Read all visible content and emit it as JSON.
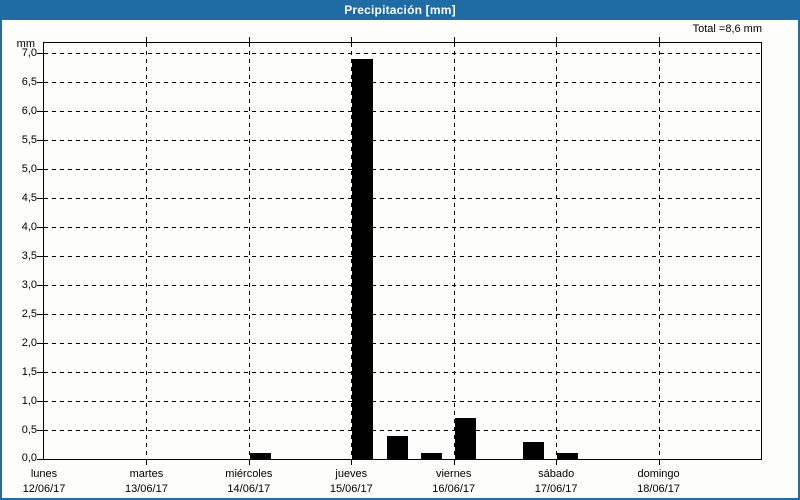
{
  "header": {
    "title": "Precipitación [mm]",
    "total": "Total =8,6 mm"
  },
  "colors": {
    "titlebar": "#1e6ca3",
    "window_border": "#1e6ca3",
    "bar": "#000000",
    "grid": "#000000",
    "background": "#fdfdfc",
    "title_text": "#ffffff"
  },
  "chart_data": {
    "type": "bar",
    "title": "Precipitación [mm]",
    "ylabel": "mm",
    "xlabel": "",
    "total_text": "Total =8,6 mm",
    "total_value_mm": 8.6,
    "ylim": [
      0,
      7
    ],
    "ytick_step": 0.5,
    "yticks": [
      0.0,
      0.5,
      1.0,
      1.5,
      2.0,
      2.5,
      3.0,
      3.5,
      4.0,
      4.5,
      5.0,
      5.5,
      6.0,
      6.5,
      7.0
    ],
    "ytick_labels": [
      "0,0",
      "0,5",
      "1,0",
      "1,5",
      "2,0",
      "2,5",
      "3,0",
      "3,5",
      "4,0",
      "4,5",
      "5,0",
      "5,5",
      "6,0",
      "6,5",
      "7,0"
    ],
    "grid": true,
    "grid_style": "dashed",
    "legend_position": "none",
    "days": [
      {
        "name": "lunes",
        "date": "12/06/17"
      },
      {
        "name": "martes",
        "date": "13/06/17"
      },
      {
        "name": "miércoles",
        "date": "14/06/17"
      },
      {
        "name": "jueves",
        "date": "15/06/17"
      },
      {
        "name": "viernes",
        "date": "16/06/17"
      },
      {
        "name": "sábado",
        "date": "17/06/17"
      },
      {
        "name": "domingo",
        "date": "18/06/17"
      }
    ],
    "bars": [
      {
        "day_index": 2,
        "day": "miércoles 14/06/17",
        "offset_fraction": 0.0,
        "value_mm": 0.1
      },
      {
        "day_index": 3,
        "day": "jueves 15/06/17",
        "offset_fraction": 0.0,
        "value_mm": 6.9
      },
      {
        "day_index": 3,
        "day": "jueves 15/06/17",
        "offset_fraction": 0.34,
        "value_mm": 0.4
      },
      {
        "day_index": 3,
        "day": "jueves 15/06/17",
        "offset_fraction": 0.67,
        "value_mm": 0.1
      },
      {
        "day_index": 4,
        "day": "viernes 16/06/17",
        "offset_fraction": 0.0,
        "value_mm": 0.7
      },
      {
        "day_index": 4,
        "day": "viernes 16/06/17",
        "offset_fraction": 0.67,
        "value_mm": 0.3
      },
      {
        "day_index": 5,
        "day": "sábado 17/06/17",
        "offset_fraction": 0.0,
        "value_mm": 0.1
      }
    ]
  }
}
